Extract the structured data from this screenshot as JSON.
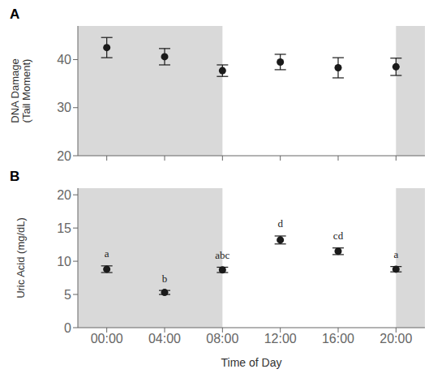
{
  "chart_data": [
    {
      "type": "scatter",
      "panel_label": "A",
      "categories": [
        "00:00",
        "04:00",
        "08:00",
        "12:00",
        "16:00",
        "20:00"
      ],
      "xlim": [
        -0.5,
        5.5
      ],
      "values": [
        42.5,
        40.6,
        37.7,
        39.5,
        38.3,
        38.5
      ],
      "errors": [
        2.1,
        1.7,
        1.2,
        1.6,
        2.1,
        1.8
      ],
      "color": "#1a1a1a",
      "marker": "circle",
      "ylim": [
        20,
        47
      ],
      "yticks": [
        20,
        30,
        40
      ],
      "ylabel": "DNA Damage\n(Tail Moment)",
      "tick_labels": "y",
      "grid": false,
      "shaded_x_ranges": [
        {
          "from": -0.5,
          "to": 2.0,
          "color": "#d9d9d9"
        },
        {
          "from": 5.0,
          "to": 5.5,
          "color": "#d9d9d9"
        }
      ]
    },
    {
      "type": "scatter",
      "panel_label": "B",
      "categories": [
        "00:00",
        "04:00",
        "08:00",
        "12:00",
        "16:00",
        "20:00"
      ],
      "xlim": [
        -0.5,
        5.5
      ],
      "values": [
        8.8,
        5.3,
        8.7,
        13.2,
        11.5,
        8.8
      ],
      "errors": [
        0.5,
        0.3,
        0.4,
        0.6,
        0.5,
        0.4
      ],
      "color": "#1a1a1a",
      "marker": "circle",
      "ylim": [
        0,
        21
      ],
      "yticks": [
        0,
        5,
        10,
        15,
        20
      ],
      "ylabel": "Uric Acid (mg/dL)",
      "xlabel": "Time of Day",
      "grid": false,
      "point_labels": [
        "a",
        "b",
        "abc",
        "d",
        "cd",
        "a"
      ],
      "shaded_x_ranges": [
        {
          "from": -0.5,
          "to": 2.0,
          "color": "#d9d9d9"
        },
        {
          "from": 5.0,
          "to": 5.5,
          "color": "#d9d9d9"
        }
      ]
    }
  ]
}
